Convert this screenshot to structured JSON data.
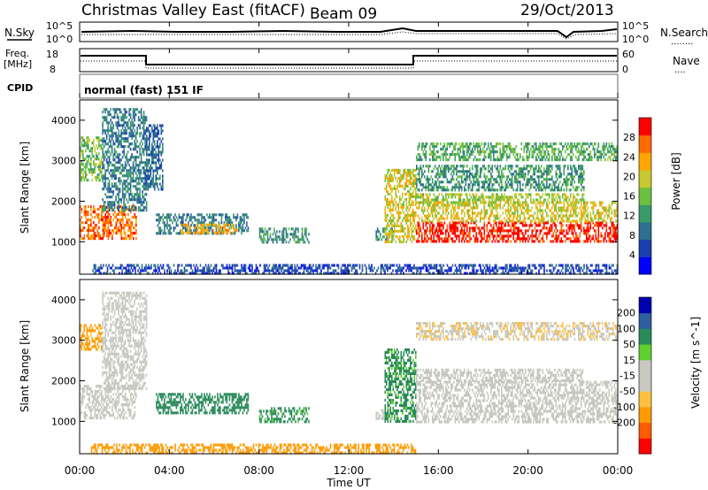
{
  "header": {
    "title": "Christmas Valley East (fitACF)",
    "beam": "Beam 09",
    "date": "29/Oct/2013"
  },
  "sky_panel": {
    "left_label": "N.Sky",
    "right_label": "N.Search",
    "right_legend": "........",
    "y_ticks_left": [
      "10^5",
      "10^0"
    ],
    "y_ticks_right": [
      "10^5",
      "10^0"
    ]
  },
  "freq_panel": {
    "left_label_1": "Freq.",
    "left_label_2": "[MHz]",
    "right_label": "Nave",
    "right_legend": "....",
    "y_ticks_left": [
      "18",
      "8"
    ],
    "y_ticks_right": [
      "60",
      "0"
    ]
  },
  "cpid": {
    "label": "CPID",
    "mode": "normal (fast) 151 IF"
  },
  "x_axis": {
    "ticks": [
      "00:00",
      "04:00",
      "08:00",
      "12:00",
      "16:00",
      "20:00",
      "00:00"
    ],
    "label": "Time UT"
  },
  "colors": {
    "power_scale": [
      "#0000ff",
      "#1a3fb0",
      "#2f6f8f",
      "#3a9a6a",
      "#6cc040",
      "#c8c830",
      "#ffa500",
      "#ff6a00",
      "#ff0000"
    ],
    "velocity_scale": [
      "#ff0000",
      "#ff5a00",
      "#ff9a00",
      "#ffc040",
      "#c8c8c0",
      "#c8c8c0",
      "#60d030",
      "#2a8a5a",
      "#2f5fa0",
      "#0000b0"
    ]
  },
  "chart_data": [
    {
      "type": "heatmap",
      "title": "Power",
      "ylabel": "Slant Range [km]",
      "xlabel": "",
      "x_range_hours": [
        0,
        24
      ],
      "ylim": [
        200,
        4500
      ],
      "y_ticks": [
        1000,
        2000,
        3000,
        4000
      ],
      "colorbar": {
        "label": "Power [dB]",
        "ticks": [
          4,
          8,
          12,
          16,
          20,
          24,
          28
        ],
        "range": [
          0,
          32
        ]
      },
      "regions": [
        {
          "t0": 0.0,
          "t1": 2.5,
          "r0": 1050,
          "r1": 1900,
          "value": 26
        },
        {
          "t0": 0.0,
          "t1": 1.0,
          "r0": 2500,
          "r1": 3600,
          "value": 16
        },
        {
          "t0": 1.0,
          "t1": 3.0,
          "r0": 1800,
          "r1": 4300,
          "value": 10
        },
        {
          "t0": 2.9,
          "t1": 3.7,
          "r0": 2300,
          "r1": 3900,
          "value": 8
        },
        {
          "t0": 3.4,
          "t1": 7.5,
          "r0": 1200,
          "r1": 1700,
          "value": 10
        },
        {
          "t0": 4.5,
          "t1": 7.0,
          "r0": 1250,
          "r1": 1450,
          "value": 22
        },
        {
          "t0": 8.0,
          "t1": 10.2,
          "r0": 1000,
          "r1": 1350,
          "value": 12
        },
        {
          "t0": 13.2,
          "t1": 14.0,
          "r0": 1050,
          "r1": 1350,
          "value": 12
        },
        {
          "t0": 13.6,
          "t1": 15.0,
          "r0": 1000,
          "r1": 2800,
          "value": 20
        },
        {
          "t0": 15.0,
          "t1": 24.0,
          "r0": 1000,
          "r1": 1500,
          "value": 30
        },
        {
          "t0": 15.0,
          "t1": 24.0,
          "r0": 1500,
          "r1": 2000,
          "value": 20
        },
        {
          "t0": 15.0,
          "t1": 22.5,
          "r0": 2000,
          "r1": 2200,
          "value": 18
        },
        {
          "t0": 15.0,
          "t1": 22.5,
          "r0": 2300,
          "r1": 2900,
          "value": 12
        },
        {
          "t0": 15.0,
          "t1": 24.0,
          "r0": 3000,
          "r1": 3450,
          "value": 14
        },
        {
          "t0": 0.5,
          "t1": 24.0,
          "r0": 200,
          "r1": 450,
          "value": 6
        }
      ]
    },
    {
      "type": "heatmap",
      "title": "Velocity",
      "ylabel": "Slant Range [km]",
      "xlabel": "Time UT",
      "x_range_hours": [
        0,
        24
      ],
      "ylim": [
        200,
        4500
      ],
      "y_ticks": [
        1000,
        2000,
        3000,
        4000
      ],
      "colorbar": {
        "label": "Velocity [m s^-1]",
        "ticks": [
          200,
          100,
          50,
          15,
          -15,
          -50,
          -100,
          -200
        ],
        "range": [
          -250,
          250
        ]
      },
      "regions": [
        {
          "t0": 0.0,
          "t1": 2.5,
          "r0": 1050,
          "r1": 1900,
          "value": 0
        },
        {
          "t0": 0.0,
          "t1": 1.0,
          "r0": 2800,
          "r1": 3400,
          "value": -60
        },
        {
          "t0": 1.0,
          "t1": 3.0,
          "r0": 1800,
          "r1": 4200,
          "value": 0
        },
        {
          "t0": 3.4,
          "t1": 7.5,
          "r0": 1200,
          "r1": 1700,
          "value": 70
        },
        {
          "t0": 8.0,
          "t1": 10.2,
          "r0": 1000,
          "r1": 1350,
          "value": 60
        },
        {
          "t0": 13.2,
          "t1": 14.0,
          "r0": 1050,
          "r1": 1300,
          "value": 0
        },
        {
          "t0": 13.6,
          "t1": 15.0,
          "r0": 1000,
          "r1": 2800,
          "value": 60
        },
        {
          "t0": 15.0,
          "t1": 24.0,
          "r0": 1000,
          "r1": 2000,
          "value": 0
        },
        {
          "t0": 15.0,
          "t1": 22.5,
          "r0": 2000,
          "r1": 2300,
          "value": 0
        },
        {
          "t0": 15.0,
          "t1": 24.0,
          "r0": 3000,
          "r1": 3450,
          "value": -10
        },
        {
          "t0": 0.5,
          "t1": 15.0,
          "r0": 200,
          "r1": 450,
          "value": -70
        }
      ]
    }
  ]
}
